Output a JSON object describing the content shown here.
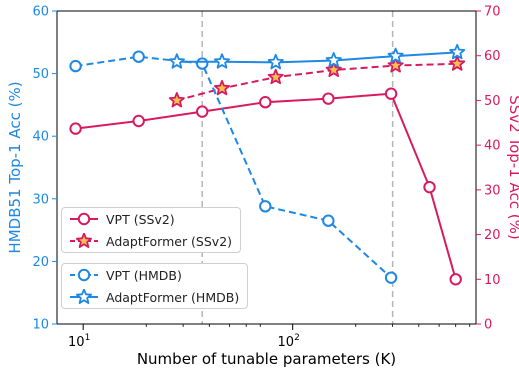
{
  "chart_data": {
    "type": "line",
    "xlabel": "Number of tunable parameters (K)",
    "ylabel_left": "HMDB51 Top-1 Acc (%)",
    "ylabel_right": "SSv2 Top-1 Acc (%)",
    "xscale": "log",
    "xlim": [
      7.5,
      750
    ],
    "ylim_left": [
      10,
      60
    ],
    "ylim_right": [
      0,
      70
    ],
    "x_ticks": [
      {
        "value": 10,
        "base": "10",
        "exp": "1"
      },
      {
        "value": 100,
        "base": "10",
        "exp": "2"
      }
    ],
    "y_ticks_left": [
      "10",
      "20",
      "30",
      "40",
      "50",
      "60"
    ],
    "y_ticks_right": [
      "0",
      "10",
      "20",
      "30",
      "40",
      "50",
      "60",
      "70"
    ],
    "vlines": [
      37,
      300
    ],
    "grid": false,
    "colors": {
      "left_axis": "#1e88e5",
      "right_axis": "#d81b60"
    },
    "series": [
      {
        "name": "VPT (SSv2)",
        "axis": "right",
        "color": "#d81b60",
        "dash": "solid",
        "marker": "circle",
        "x": [
          9.2,
          18.4,
          37,
          74,
          148,
          295,
          450,
          600
        ],
        "y": [
          43.7,
          45.4,
          47.5,
          49.6,
          50.4,
          51.5,
          30.6,
          10.0
        ]
      },
      {
        "name": "AdaptFormer (SSv2)",
        "axis": "right",
        "color": "#d81b60",
        "dash": "dashed",
        "marker": "star",
        "x": [
          28,
          46,
          83,
          157,
          310,
          610
        ],
        "y": [
          50.0,
          52.7,
          55.2,
          56.8,
          57.8,
          58.2
        ]
      },
      {
        "name": "VPT (HMDB)",
        "axis": "left",
        "color": "#1e88e5",
        "dash": "dashed",
        "marker": "circle",
        "x": [
          9.2,
          18.4,
          37,
          74,
          148,
          295
        ],
        "y": [
          51.2,
          52.7,
          51.6,
          28.8,
          26.5,
          17.4
        ]
      },
      {
        "name": "AdaptFormer (HMDB)",
        "axis": "left",
        "color": "#1e88e5",
        "dash": "solid",
        "marker": "star",
        "x": [
          28,
          46,
          83,
          157,
          310,
          610
        ],
        "y": [
          51.9,
          51.9,
          51.8,
          52.1,
          52.8,
          53.4
        ]
      }
    ],
    "legends": [
      {
        "entries": [
          0,
          1
        ],
        "position": "lower-left"
      },
      {
        "entries": [
          2,
          3
        ],
        "position": "lower-left"
      }
    ]
  }
}
